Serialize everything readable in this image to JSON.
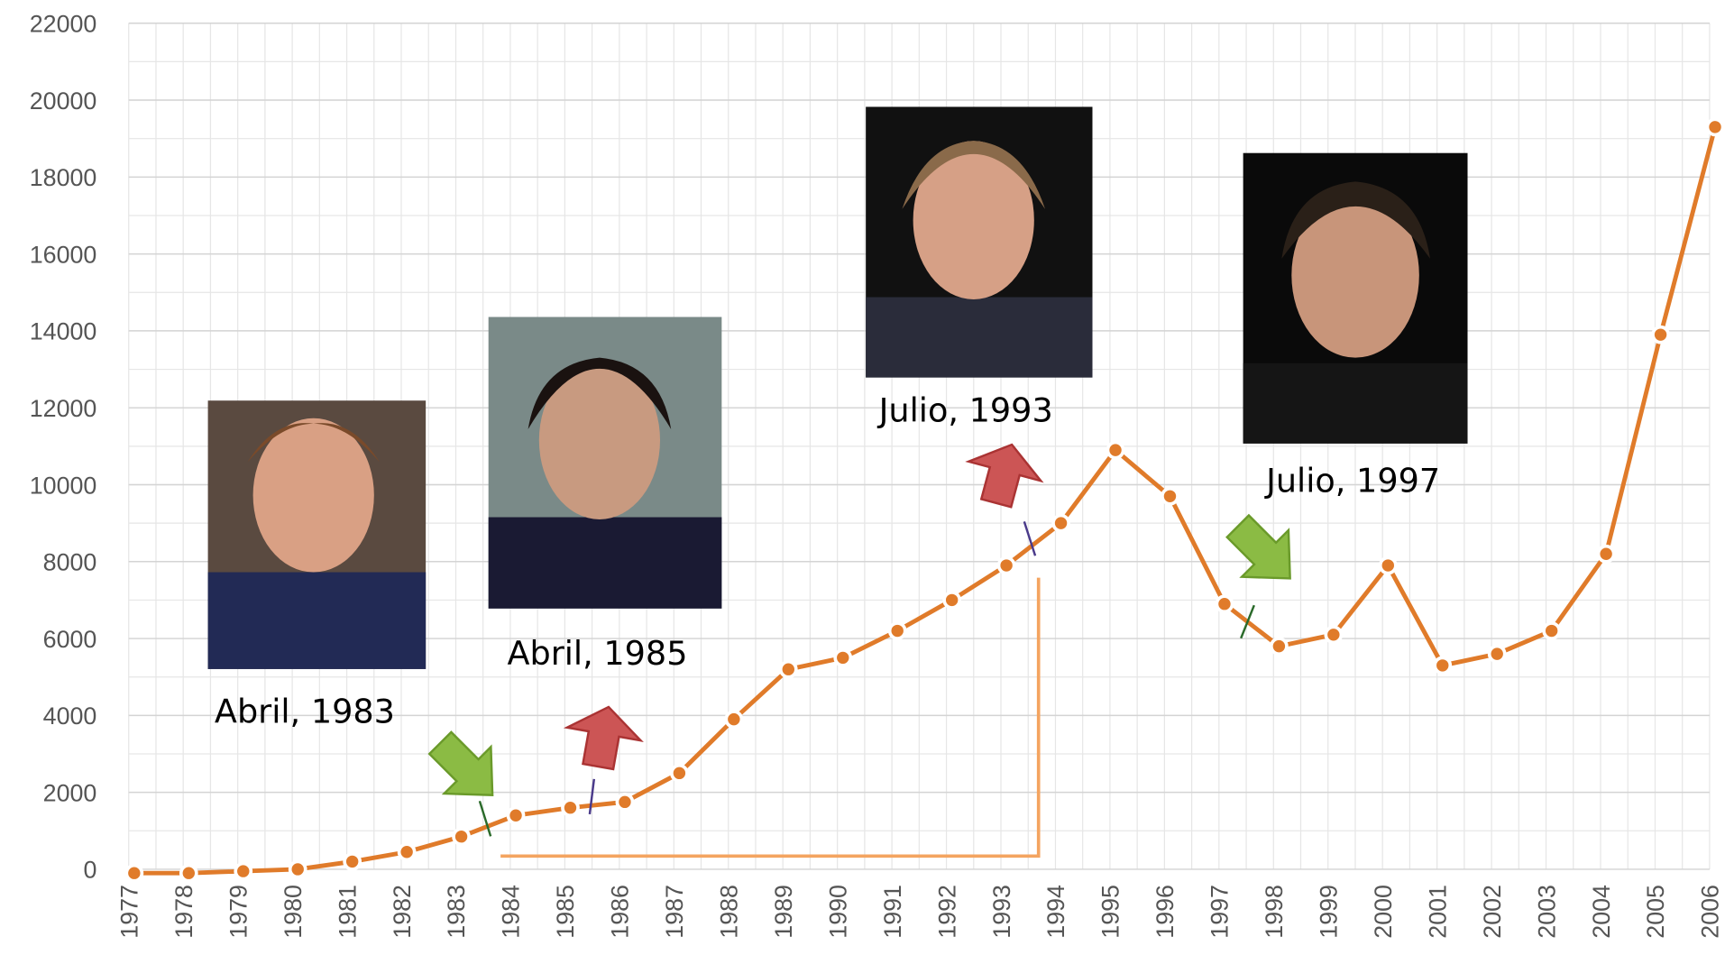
{
  "chart_data": {
    "type": "line",
    "categories": [
      "1977",
      "1978",
      "1979",
      "1980",
      "1981",
      "1982",
      "1983",
      "1984",
      "1985",
      "1986",
      "1987",
      "1988",
      "1989",
      "1990",
      "1991",
      "1992",
      "1993",
      "1994",
      "1995",
      "1996",
      "1997",
      "1998",
      "1999",
      "2000",
      "2001",
      "2002",
      "2003",
      "2004",
      "2005",
      "2006"
    ],
    "series": [
      {
        "color": "#e07b2a",
        "values": [
          -100,
          -100,
          -50,
          0,
          200,
          450,
          850,
          1400,
          1600,
          1750,
          2500,
          3900,
          5200,
          5500,
          6200,
          7000,
          7900,
          9000,
          10900,
          9700,
          6900,
          5800,
          6100,
          7900,
          5300,
          5600,
          6200,
          8200,
          13900,
          19300
        ]
      }
    ],
    "ylim": [
      0,
      22000
    ],
    "yticks": [
      0,
      2000,
      4000,
      6000,
      8000,
      10000,
      12000,
      14000,
      16000,
      18000,
      20000,
      22000
    ],
    "grid": true,
    "annotations": [
      "Abril, 1983",
      "Abril, 1985",
      "Julio, 1993",
      "Julio, 1997"
    ]
  }
}
